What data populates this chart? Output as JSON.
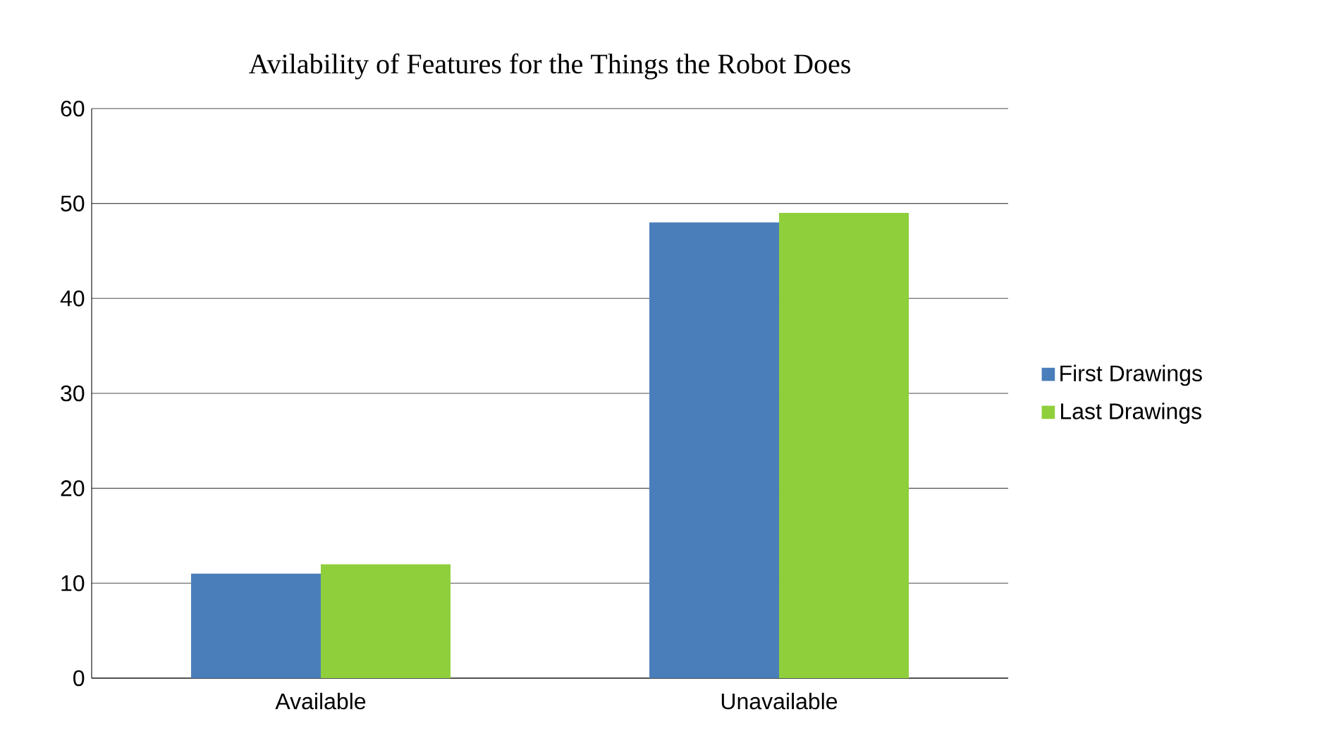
{
  "chart_data": {
    "type": "bar",
    "title": "Avilability of Features for the Things the Robot Does",
    "categories": [
      "Available",
      "Unavailable"
    ],
    "series": [
      {
        "name": "First Drawings",
        "color": "#4a7ebb",
        "values": [
          11,
          48
        ]
      },
      {
        "name": "Last Drawings",
        "color": "#8fcf3c",
        "values": [
          12,
          49
        ]
      }
    ],
    "ylim": [
      0,
      60
    ],
    "yticks": [
      0,
      10,
      20,
      30,
      40,
      50,
      60
    ],
    "grid": "y",
    "legend": "right"
  }
}
